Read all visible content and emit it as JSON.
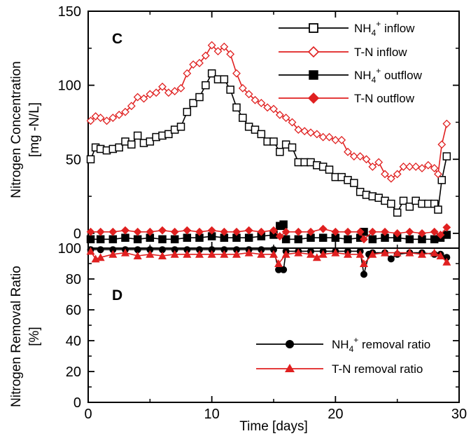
{
  "chart_data": [
    {
      "panel": "C",
      "type": "line",
      "ylabel_line1": "Nitrogen Concentration",
      "ylabel_line2": "[mg -N/L]",
      "xlim": [
        0,
        30
      ],
      "ylim": [
        -10,
        150
      ],
      "yticks": [
        0,
        50,
        100,
        150
      ],
      "legend_position": "top-right",
      "series": [
        {
          "name": "NH4+ inflow",
          "name_main": "NH",
          "name_sub": "4",
          "name_sup": "+",
          "name_rest": " inflow",
          "color": "#000000",
          "marker": "open-square",
          "points": [
            [
              0.2,
              50
            ],
            [
              0.6,
              58
            ],
            [
              1.0,
              57
            ],
            [
              1.5,
              56
            ],
            [
              2.0,
              57
            ],
            [
              2.5,
              58
            ],
            [
              3.0,
              62
            ],
            [
              3.5,
              60
            ],
            [
              4.0,
              66
            ],
            [
              4.5,
              61
            ],
            [
              5.0,
              62
            ],
            [
              5.5,
              65
            ],
            [
              6.0,
              66
            ],
            [
              6.5,
              67
            ],
            [
              7.0,
              70
            ],
            [
              7.5,
              72
            ],
            [
              8.0,
              82
            ],
            [
              8.5,
              88
            ],
            [
              9.0,
              92
            ],
            [
              9.5,
              100
            ],
            [
              10.0,
              108
            ],
            [
              10.5,
              104
            ],
            [
              11.0,
              104
            ],
            [
              11.5,
              97
            ],
            [
              12.0,
              85
            ],
            [
              12.5,
              78
            ],
            [
              13.0,
              72
            ],
            [
              13.5,
              70
            ],
            [
              14.0,
              67
            ],
            [
              14.5,
              62
            ],
            [
              15.0,
              62
            ],
            [
              15.5,
              55
            ],
            [
              16.0,
              60
            ],
            [
              16.5,
              58
            ],
            [
              17.0,
              48
            ],
            [
              17.5,
              48
            ],
            [
              18.0,
              48
            ],
            [
              18.5,
              46
            ],
            [
              19.0,
              45
            ],
            [
              19.5,
              43
            ],
            [
              20.0,
              38
            ],
            [
              20.5,
              38
            ],
            [
              21.0,
              36
            ],
            [
              21.5,
              34
            ],
            [
              22.0,
              28
            ],
            [
              22.5,
              26
            ],
            [
              23.0,
              25
            ],
            [
              23.5,
              24
            ],
            [
              24.0,
              22
            ],
            [
              24.5,
              20
            ],
            [
              25.0,
              14
            ],
            [
              25.5,
              22
            ],
            [
              26.0,
              18
            ],
            [
              26.5,
              22
            ],
            [
              27.0,
              20
            ],
            [
              27.5,
              20
            ],
            [
              28.0,
              20
            ],
            [
              28.3,
              16
            ],
            [
              28.6,
              36
            ],
            [
              29.0,
              52
            ]
          ]
        },
        {
          "name": "T-N inflow",
          "color": "#e02020",
          "marker": "open-diamond",
          "points": [
            [
              0.2,
              76
            ],
            [
              0.6,
              79
            ],
            [
              1.0,
              78
            ],
            [
              1.5,
              76
            ],
            [
              2.0,
              78
            ],
            [
              2.5,
              80
            ],
            [
              3.0,
              82
            ],
            [
              3.5,
              86
            ],
            [
              4.0,
              92
            ],
            [
              4.5,
              91
            ],
            [
              5.0,
              94
            ],
            [
              5.5,
              95
            ],
            [
              6.0,
              99
            ],
            [
              6.5,
              95
            ],
            [
              7.0,
              96
            ],
            [
              7.5,
              98
            ],
            [
              8.0,
              108
            ],
            [
              8.5,
              114
            ],
            [
              9.0,
              115
            ],
            [
              9.5,
              120
            ],
            [
              10.0,
              127
            ],
            [
              10.5,
              123
            ],
            [
              11.0,
              126
            ],
            [
              11.5,
              121
            ],
            [
              12.0,
              108
            ],
            [
              12.5,
              98
            ],
            [
              13.0,
              94
            ],
            [
              13.5,
              90
            ],
            [
              14.0,
              88
            ],
            [
              14.5,
              85
            ],
            [
              15.0,
              84
            ],
            [
              15.5,
              80
            ],
            [
              16.0,
              78
            ],
            [
              16.5,
              75
            ],
            [
              17.0,
              70
            ],
            [
              17.5,
              69
            ],
            [
              18.0,
              68
            ],
            [
              18.5,
              67
            ],
            [
              19.0,
              65
            ],
            [
              19.5,
              65
            ],
            [
              20.0,
              63
            ],
            [
              20.5,
              63
            ],
            [
              21.0,
              55
            ],
            [
              21.5,
              52
            ],
            [
              22.0,
              52
            ],
            [
              22.5,
              50
            ],
            [
              23.0,
              45
            ],
            [
              23.5,
              48
            ],
            [
              24.0,
              40
            ],
            [
              24.5,
              37
            ],
            [
              25.0,
              40
            ],
            [
              25.5,
              45
            ],
            [
              26.0,
              45
            ],
            [
              26.5,
              45
            ],
            [
              27.0,
              44
            ],
            [
              27.5,
              46
            ],
            [
              28.0,
              44
            ],
            [
              28.3,
              40
            ],
            [
              28.6,
              60
            ],
            [
              29.0,
              74
            ]
          ]
        },
        {
          "name": "NH4+ outflow",
          "name_main": "NH",
          "name_sub": "4",
          "name_sup": "+",
          "name_rest": " outflow",
          "color": "#000000",
          "marker": "filled-square",
          "points": [
            [
              0.2,
              -4
            ],
            [
              1.0,
              -4
            ],
            [
              2.0,
              -4
            ],
            [
              3.0,
              -3
            ],
            [
              4.0,
              -4
            ],
            [
              5.0,
              -3
            ],
            [
              6.0,
              -4
            ],
            [
              7.0,
              -4
            ],
            [
              8.0,
              -3
            ],
            [
              9.0,
              -3
            ],
            [
              10.0,
              -2
            ],
            [
              11.0,
              -3
            ],
            [
              12.0,
              -3
            ],
            [
              13.0,
              -3
            ],
            [
              14.0,
              -2
            ],
            [
              15.0,
              -1
            ],
            [
              15.5,
              5
            ],
            [
              15.8,
              6
            ],
            [
              16.0,
              -4
            ],
            [
              17.0,
              -4
            ],
            [
              18.0,
              -3
            ],
            [
              19.0,
              -3
            ],
            [
              20.0,
              -3
            ],
            [
              21.0,
              -4
            ],
            [
              22.0,
              -3
            ],
            [
              22.3,
              1
            ],
            [
              23.0,
              -4
            ],
            [
              24.0,
              -3
            ],
            [
              25.0,
              -3
            ],
            [
              26.0,
              -4
            ],
            [
              27.0,
              -4
            ],
            [
              28.0,
              -4
            ],
            [
              28.5,
              -3
            ],
            [
              29.0,
              -1
            ]
          ]
        },
        {
          "name": "T-N outflow",
          "color": "#e02020",
          "marker": "filled-diamond",
          "points": [
            [
              0.2,
              1
            ],
            [
              1.0,
              1
            ],
            [
              2.0,
              1
            ],
            [
              3.0,
              2
            ],
            [
              4.0,
              1
            ],
            [
              5.0,
              1
            ],
            [
              6.0,
              2
            ],
            [
              7.0,
              1
            ],
            [
              8.0,
              2
            ],
            [
              9.0,
              1
            ],
            [
              10.0,
              2
            ],
            [
              11.0,
              1
            ],
            [
              12.0,
              1
            ],
            [
              13.0,
              2
            ],
            [
              14.0,
              1
            ],
            [
              15.0,
              2
            ],
            [
              15.5,
              -2
            ],
            [
              16.0,
              1
            ],
            [
              17.0,
              1
            ],
            [
              18.0,
              1
            ],
            [
              19.0,
              3
            ],
            [
              20.0,
              1
            ],
            [
              21.0,
              1
            ],
            [
              22.0,
              1
            ],
            [
              22.3,
              -4
            ],
            [
              23.0,
              1
            ],
            [
              24.0,
              1
            ],
            [
              25.0,
              0
            ],
            [
              26.0,
              1
            ],
            [
              27.0,
              0
            ],
            [
              28.0,
              1
            ],
            [
              28.5,
              -1
            ],
            [
              29.0,
              4
            ]
          ]
        }
      ]
    },
    {
      "panel": "D",
      "type": "line",
      "ylabel_line1": "Nitrogen Removal Ratio",
      "ylabel_line2": "[%]",
      "xlabel": "Time [days]",
      "xlim": [
        0,
        30
      ],
      "ylim": [
        0,
        100
      ],
      "xticks": [
        0,
        10,
        20,
        30
      ],
      "yticks": [
        0,
        20,
        40,
        60,
        80,
        100
      ],
      "legend_position": "bottom-right",
      "series": [
        {
          "name": "NH4+ removal ratio",
          "name_main": "NH",
          "name_sub": "4",
          "name_sup": "+",
          "name_rest": " removal ratio",
          "color": "#000000",
          "marker": "filled-circle",
          "points": [
            [
              0.2,
              99
            ],
            [
              1.0,
              99
            ],
            [
              2.0,
              99
            ],
            [
              3.0,
              99
            ],
            [
              4.0,
              99
            ],
            [
              5.0,
              99
            ],
            [
              6.0,
              99
            ],
            [
              7.0,
              99
            ],
            [
              8.0,
              99
            ],
            [
              9.0,
              99
            ],
            [
              10.0,
              99
            ],
            [
              11.0,
              99
            ],
            [
              12.0,
              99
            ],
            [
              13.0,
              99
            ],
            [
              14.0,
              99
            ],
            [
              15.0,
              99
            ],
            [
              15.4,
              86
            ],
            [
              15.8,
              86
            ],
            [
              16.0,
              98
            ],
            [
              17.0,
              98
            ],
            [
              18.0,
              98
            ],
            [
              19.0,
              98
            ],
            [
              20.0,
              98
            ],
            [
              21.0,
              98
            ],
            [
              22.0,
              98
            ],
            [
              22.3,
              83
            ],
            [
              22.7,
              96
            ],
            [
              23.0,
              97
            ],
            [
              24.0,
              97
            ],
            [
              24.5,
              93
            ],
            [
              25.0,
              96
            ],
            [
              26.0,
              97
            ],
            [
              27.0,
              97
            ],
            [
              28.0,
              96
            ],
            [
              28.5,
              96
            ],
            [
              29.0,
              94
            ]
          ]
        },
        {
          "name": "T-N removal ratio",
          "color": "#e02020",
          "marker": "filled-triangle",
          "points": [
            [
              0.2,
              98
            ],
            [
              0.6,
              93
            ],
            [
              1.0,
              94
            ],
            [
              2.0,
              96
            ],
            [
              3.0,
              97
            ],
            [
              4.0,
              95
            ],
            [
              5.0,
              96
            ],
            [
              6.0,
              95
            ],
            [
              7.0,
              96
            ],
            [
              8.0,
              96
            ],
            [
              9.0,
              96
            ],
            [
              10.0,
              96
            ],
            [
              11.0,
              96
            ],
            [
              12.0,
              96
            ],
            [
              13.0,
              97
            ],
            [
              14.0,
              96
            ],
            [
              15.0,
              96
            ],
            [
              15.4,
              90
            ],
            [
              16.0,
              96
            ],
            [
              17.0,
              97
            ],
            [
              18.0,
              96
            ],
            [
              18.5,
              94
            ],
            [
              19.0,
              96
            ],
            [
              20.0,
              97
            ],
            [
              21.0,
              96
            ],
            [
              22.0,
              96
            ],
            [
              22.3,
              90
            ],
            [
              23.0,
              96
            ],
            [
              24.0,
              97
            ],
            [
              25.0,
              97
            ],
            [
              26.0,
              97
            ],
            [
              27.0,
              96
            ],
            [
              28.0,
              97
            ],
            [
              28.5,
              95
            ],
            [
              29.0,
              91
            ]
          ]
        }
      ]
    }
  ]
}
